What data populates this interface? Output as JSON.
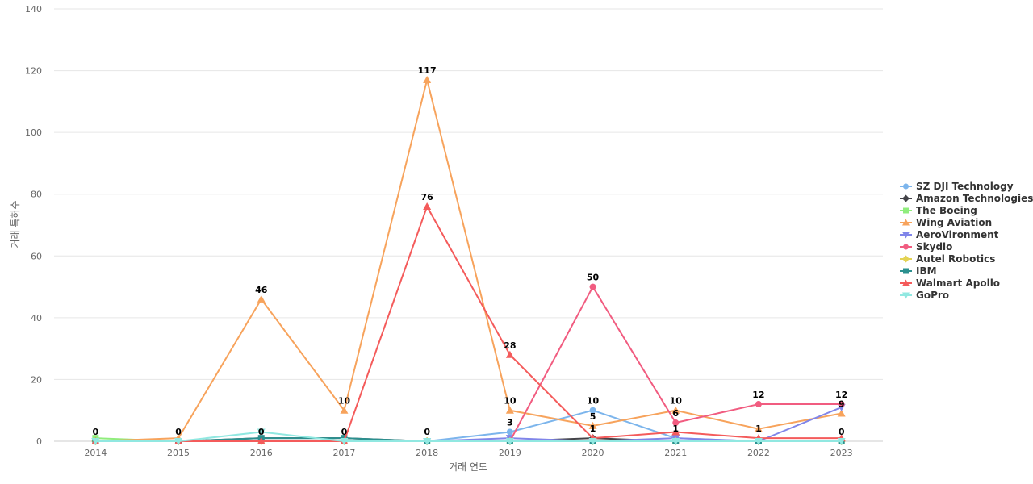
{
  "chart_data": {
    "type": "line",
    "xlabel": "거래 연도",
    "ylabel": "거래 특허수",
    "ylim": [
      0,
      140
    ],
    "yticks": [
      0,
      20,
      40,
      60,
      80,
      100,
      120,
      140
    ],
    "grid": true,
    "legend_position": "right",
    "categories": [
      "2014",
      "2015",
      "2016",
      "2017",
      "2018",
      "2019",
      "2020",
      "2021",
      "2022",
      "2023"
    ],
    "series": [
      {
        "name": "SZ DJI Technology",
        "color": "#7cb5ec",
        "marker": "circle",
        "values": [
          0,
          0,
          0,
          0,
          0,
          3,
          10,
          1,
          0,
          0
        ]
      },
      {
        "name": "Amazon Technologies",
        "color": "#434348",
        "marker": "diamond",
        "values": [
          0,
          0,
          1,
          1,
          0,
          0,
          1,
          0,
          0,
          0
        ]
      },
      {
        "name": "The Boeing",
        "color": "#90ed7d",
        "marker": "square",
        "values": [
          1,
          0,
          0,
          0,
          0,
          0,
          0,
          0,
          0,
          0
        ]
      },
      {
        "name": "Wing Aviation",
        "color": "#f7a35c",
        "marker": "triangle",
        "values": [
          0,
          1,
          46,
          10,
          117,
          10,
          5,
          10,
          4,
          9
        ]
      },
      {
        "name": "AeroVironment",
        "color": "#8085e9",
        "marker": "triangle-down",
        "values": [
          0,
          0,
          0,
          0,
          0,
          1,
          0,
          1,
          0,
          11
        ]
      },
      {
        "name": "Skydio",
        "color": "#f15c80",
        "marker": "circle",
        "values": [
          0,
          0,
          0,
          0,
          0,
          0,
          50,
          6,
          12,
          12
        ]
      },
      {
        "name": "Autel Robotics",
        "color": "#e4d354",
        "marker": "diamond",
        "values": [
          0,
          0,
          0,
          0,
          0,
          0,
          0,
          0,
          0,
          0
        ]
      },
      {
        "name": "IBM",
        "color": "#2b908f",
        "marker": "square",
        "values": [
          0,
          0,
          1,
          1,
          0,
          0,
          0,
          0,
          0,
          0
        ]
      },
      {
        "name": "Walmart Apollo",
        "color": "#f45b5b",
        "marker": "triangle",
        "values": [
          0,
          0,
          0,
          0,
          76,
          28,
          1,
          3,
          1,
          1
        ]
      },
      {
        "name": "GoPro",
        "color": "#91e8e1",
        "marker": "triangle-down",
        "values": [
          0,
          0,
          3,
          0,
          0,
          0,
          0,
          0,
          0,
          0
        ]
      }
    ],
    "data_labels": [
      {
        "category": "2014",
        "text": "0"
      },
      {
        "category": "2015",
        "text": "0"
      },
      {
        "category": "2016",
        "text": "46"
      },
      {
        "category": "2016",
        "text": "0"
      },
      {
        "category": "2017",
        "text": "10"
      },
      {
        "category": "2017",
        "text": "0"
      },
      {
        "category": "2018",
        "text": "117"
      },
      {
        "category": "2018",
        "text": "76"
      },
      {
        "category": "2018",
        "text": "0"
      },
      {
        "category": "2019",
        "text": "28"
      },
      {
        "category": "2019",
        "text": "10"
      },
      {
        "category": "2019",
        "text": "3"
      },
      {
        "category": "2020",
        "text": "50"
      },
      {
        "category": "2020",
        "text": "10"
      },
      {
        "category": "2020",
        "text": "5"
      },
      {
        "category": "2020",
        "text": "1"
      },
      {
        "category": "2021",
        "text": "10"
      },
      {
        "category": "2021",
        "text": "6"
      },
      {
        "category": "2021",
        "text": "1"
      },
      {
        "category": "2022",
        "text": "12"
      },
      {
        "category": "2022",
        "text": "1"
      },
      {
        "category": "2023",
        "text": "12"
      },
      {
        "category": "2023",
        "text": "9"
      },
      {
        "category": "2023",
        "text": "0"
      }
    ]
  }
}
